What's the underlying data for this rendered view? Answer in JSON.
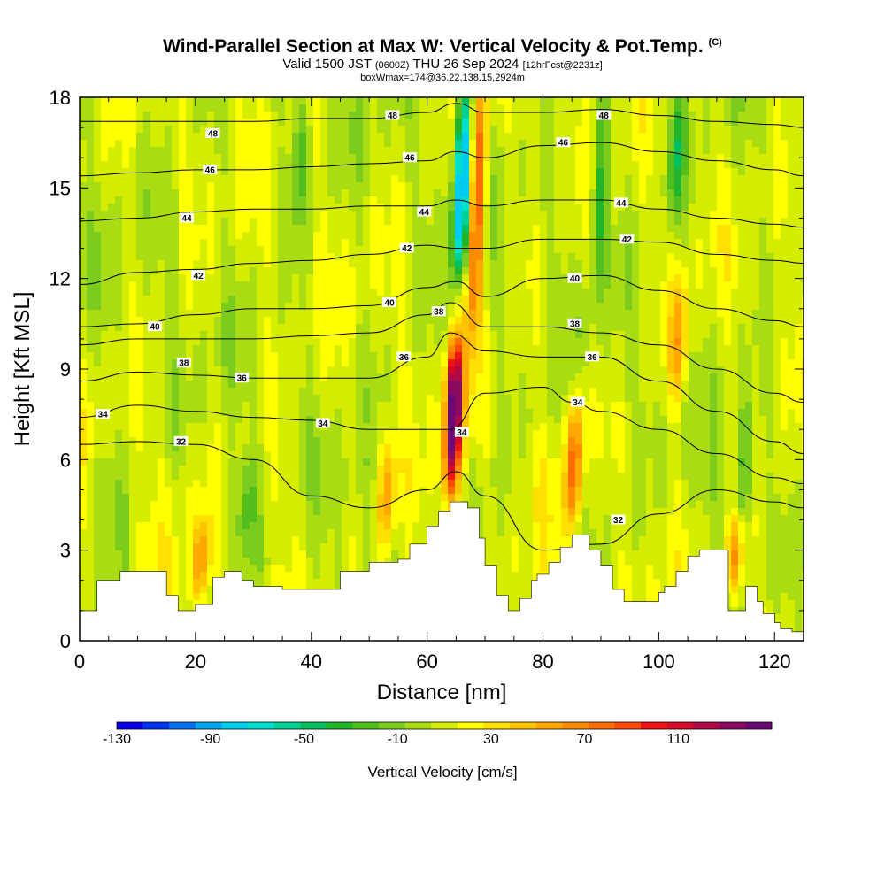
{
  "header": {
    "title": "Wind-Parallel Section at Max W: Vertical Velocity & Pot.Temp.",
    "copyright": "(C)",
    "valid_prefix": "Valid 1500 JST",
    "valid_utc": "(0600Z)",
    "valid_date": "THU 26 Sep 2024",
    "forecast_info": "[12hrFcst@2231z]",
    "box_info": "boxWmax=174@36.22,138.15,2924m"
  },
  "colors": {
    "terrain": "#ffffff",
    "contour": "#000000",
    "palette": [
      "#0a00e6",
      "#0033f5",
      "#0070f0",
      "#00a6ee",
      "#00ccee",
      "#00e0cc",
      "#00d296",
      "#00c060",
      "#22b42a",
      "#52be1e",
      "#7ccc1e",
      "#aadc14",
      "#d4ec00",
      "#ffff00",
      "#ffe000",
      "#ffc400",
      "#ffa800",
      "#ff8c00",
      "#ff6c00",
      "#ff4800",
      "#f01414",
      "#d40a28",
      "#b00a46",
      "#8c0a60",
      "#6a0a74"
    ]
  },
  "chart_data": {
    "type": "heatmap",
    "xlabel": "Distance [nm]",
    "ylabel": "Height [Kft MSL]",
    "xlim": [
      0,
      125
    ],
    "ylim": [
      0,
      18
    ],
    "x_ticks": [
      0,
      20,
      40,
      60,
      80,
      100,
      120
    ],
    "y_ticks": [
      0,
      3,
      6,
      9,
      12,
      15,
      18
    ],
    "colorbar": {
      "title": "Vertical Velocity [cm/s]",
      "range": [
        -130,
        150
      ],
      "step": 10,
      "tick_labels": [
        -130,
        -90,
        -50,
        -10,
        30,
        70,
        110
      ]
    },
    "terrain_profile": {
      "x": [
        0,
        3,
        5,
        7,
        10,
        11,
        15,
        17,
        20,
        23,
        25,
        28,
        30,
        35,
        40,
        42,
        45,
        50,
        52,
        55,
        57,
        60,
        62,
        64,
        66,
        67,
        69,
        70,
        72,
        74,
        76,
        78,
        79,
        81,
        83,
        85,
        86,
        88,
        90,
        92,
        94,
        96,
        98,
        100,
        101,
        103,
        105,
        107,
        110,
        112,
        115,
        117,
        118,
        120,
        121,
        123,
        124,
        125
      ],
      "y": [
        1.0,
        2.0,
        2.0,
        2.3,
        2.3,
        2.3,
        1.5,
        1.0,
        1.2,
        2.1,
        2.3,
        2.0,
        1.8,
        1.7,
        1.7,
        1.7,
        2.3,
        2.6,
        2.6,
        2.7,
        3.2,
        3.8,
        4.3,
        4.6,
        4.6,
        4.4,
        3.4,
        2.5,
        1.5,
        1.0,
        1.4,
        2.0,
        2.2,
        2.6,
        3.1,
        3.5,
        3.5,
        3.0,
        2.5,
        1.7,
        1.3,
        1.3,
        1.3,
        1.6,
        1.8,
        2.3,
        2.8,
        3.0,
        3.0,
        1.0,
        1.8,
        1.3,
        0.9,
        0.6,
        0.4,
        0.3,
        0.3,
        0.3
      ]
    },
    "velocity_cores": [
      {
        "x": 64.5,
        "y_bottom": 4.8,
        "y_top": 9.8,
        "peak": 150
      },
      {
        "x": 68.5,
        "y_bottom": 10.5,
        "y_top": 18.0,
        "peak": 90
      },
      {
        "x": 66.0,
        "y_bottom": 12.0,
        "y_top": 18.0,
        "peak": -110
      },
      {
        "x": 85.5,
        "y_bottom": 4.0,
        "y_top": 8.0,
        "peak": 70
      },
      {
        "x": 53.0,
        "y_bottom": 3.0,
        "y_top": 6.5,
        "peak": 50
      },
      {
        "x": 21.0,
        "y_bottom": 1.3,
        "y_top": 4.0,
        "peak": 50
      },
      {
        "x": 103.5,
        "y_bottom": 8.0,
        "y_top": 12.0,
        "peak": 45
      },
      {
        "x": 113.0,
        "y_bottom": 1.5,
        "y_top": 4.0,
        "peak": 55
      },
      {
        "x": 90.0,
        "y_bottom": 12.0,
        "y_top": 18.0,
        "peak": -45
      },
      {
        "x": 103.0,
        "y_bottom": 14.0,
        "y_top": 18.0,
        "peak": -40
      },
      {
        "x": 38.0,
        "y_bottom": 14.0,
        "y_top": 18.0,
        "peak": -30
      },
      {
        "x": 115.0,
        "y_bottom": 4.0,
        "y_top": 8.0,
        "peak": -35
      },
      {
        "x": 29.0,
        "y_bottom": 3.0,
        "y_top": 6.0,
        "peak": -25
      }
    ],
    "theta_contours": [
      {
        "label": "32",
        "x": [
          0,
          10,
          20,
          30,
          40,
          50,
          60,
          65,
          70,
          80,
          90,
          100,
          110,
          120,
          125
        ],
        "y": [
          6.5,
          6.6,
          6.5,
          6.0,
          4.8,
          4.4,
          5.0,
          5.6,
          4.8,
          3.0,
          3.2,
          4.2,
          5.0,
          4.6,
          4.4
        ]
      },
      {
        "label": "34",
        "x": [
          0,
          10,
          20,
          30,
          40,
          50,
          60,
          64,
          70,
          80,
          85,
          90,
          100,
          110,
          120,
          125
        ],
        "y": [
          7.4,
          7.8,
          7.6,
          7.4,
          7.3,
          7.0,
          7.0,
          7.0,
          8.2,
          8.4,
          7.9,
          7.6,
          7.0,
          6.2,
          5.4,
          5.2
        ]
      },
      {
        "label": "36",
        "x": [
          0,
          10,
          20,
          30,
          40,
          50,
          60,
          64,
          70,
          80,
          90,
          100,
          110,
          120,
          125
        ],
        "y": [
          8.6,
          8.9,
          8.8,
          8.7,
          8.7,
          8.7,
          9.4,
          10.2,
          9.6,
          9.4,
          9.4,
          8.6,
          7.6,
          6.6,
          6.2
        ]
      },
      {
        "label": "38",
        "x": [
          0,
          10,
          20,
          30,
          40,
          50,
          60,
          64,
          70,
          80,
          90,
          100,
          110,
          120,
          125
        ],
        "y": [
          9.8,
          10.0,
          10.0,
          10.0,
          10.1,
          10.2,
          10.8,
          11.2,
          10.4,
          10.4,
          10.2,
          9.8,
          9.0,
          8.2,
          7.9
        ]
      },
      {
        "label": "40",
        "x": [
          0,
          10,
          20,
          30,
          40,
          50,
          60,
          65,
          70,
          80,
          90,
          100,
          110,
          120,
          125
        ],
        "y": [
          10.4,
          10.5,
          10.8,
          11.0,
          11.0,
          11.1,
          11.7,
          11.9,
          11.4,
          12.0,
          12.1,
          11.6,
          11.0,
          10.6,
          10.4
        ]
      },
      {
        "label": "42",
        "x": [
          0,
          10,
          20,
          30,
          40,
          50,
          60,
          65,
          70,
          80,
          90,
          100,
          110,
          120,
          125
        ],
        "y": [
          11.8,
          12.2,
          12.3,
          12.5,
          12.6,
          12.8,
          13.1,
          13.0,
          13.0,
          13.3,
          13.3,
          13.2,
          12.8,
          12.6,
          12.5
        ]
      },
      {
        "label": "44",
        "x": [
          0,
          10,
          20,
          30,
          40,
          50,
          60,
          65,
          70,
          80,
          90,
          100,
          110,
          120,
          125
        ],
        "y": [
          13.9,
          14.0,
          14.2,
          14.3,
          14.3,
          14.4,
          14.4,
          14.6,
          14.4,
          14.6,
          14.6,
          14.3,
          14.0,
          13.8,
          13.7
        ]
      },
      {
        "label": "46",
        "x": [
          0,
          10,
          20,
          30,
          40,
          50,
          60,
          65,
          70,
          80,
          90,
          100,
          110,
          120,
          125
        ],
        "y": [
          15.4,
          15.5,
          15.6,
          15.6,
          15.7,
          15.8,
          15.9,
          16.2,
          16.0,
          16.4,
          16.5,
          16.2,
          15.9,
          15.6,
          15.4
        ]
      },
      {
        "label": "48",
        "x": [
          0,
          10,
          20,
          30,
          40,
          50,
          60,
          65,
          70,
          80,
          90,
          100,
          110,
          120,
          125
        ],
        "y": [
          17.2,
          17.2,
          17.2,
          17.2,
          17.3,
          17.3,
          17.5,
          17.8,
          17.5,
          17.5,
          17.6,
          17.4,
          17.2,
          17.1,
          17.0
        ]
      }
    ],
    "contour_labels": [
      {
        "text": "48",
        "x": 23.0,
        "y": 16.8
      },
      {
        "text": "46",
        "x": 22.5,
        "y": 15.6
      },
      {
        "text": "44",
        "x": 18.5,
        "y": 14.0
      },
      {
        "text": "42",
        "x": 20.5,
        "y": 12.1
      },
      {
        "text": "40",
        "x": 13.0,
        "y": 10.4
      },
      {
        "text": "38",
        "x": 18.0,
        "y": 9.2
      },
      {
        "text": "36",
        "x": 28.0,
        "y": 8.7
      },
      {
        "text": "34",
        "x": 4.0,
        "y": 7.5
      },
      {
        "text": "32",
        "x": 17.5,
        "y": 6.6
      },
      {
        "text": "48",
        "x": 54.0,
        "y": 17.4
      },
      {
        "text": "46",
        "x": 57.0,
        "y": 16.0
      },
      {
        "text": "44",
        "x": 59.5,
        "y": 14.2
      },
      {
        "text": "42",
        "x": 56.5,
        "y": 13.0
      },
      {
        "text": "40",
        "x": 53.5,
        "y": 11.2
      },
      {
        "text": "38",
        "x": 62.0,
        "y": 10.9
      },
      {
        "text": "36",
        "x": 56.0,
        "y": 9.4
      },
      {
        "text": "34",
        "x": 42.0,
        "y": 7.2
      },
      {
        "text": "34",
        "x": 66.0,
        "y": 6.9
      },
      {
        "text": "48",
        "x": 90.5,
        "y": 17.4
      },
      {
        "text": "46",
        "x": 83.5,
        "y": 16.5
      },
      {
        "text": "44",
        "x": 93.5,
        "y": 14.5
      },
      {
        "text": "42",
        "x": 94.5,
        "y": 13.3
      },
      {
        "text": "40",
        "x": 85.5,
        "y": 12.0
      },
      {
        "text": "38",
        "x": 85.5,
        "y": 10.5
      },
      {
        "text": "36",
        "x": 88.5,
        "y": 9.4
      },
      {
        "text": "34",
        "x": 86.0,
        "y": 7.9
      },
      {
        "text": "32",
        "x": 93.0,
        "y": 4.0
      }
    ]
  }
}
